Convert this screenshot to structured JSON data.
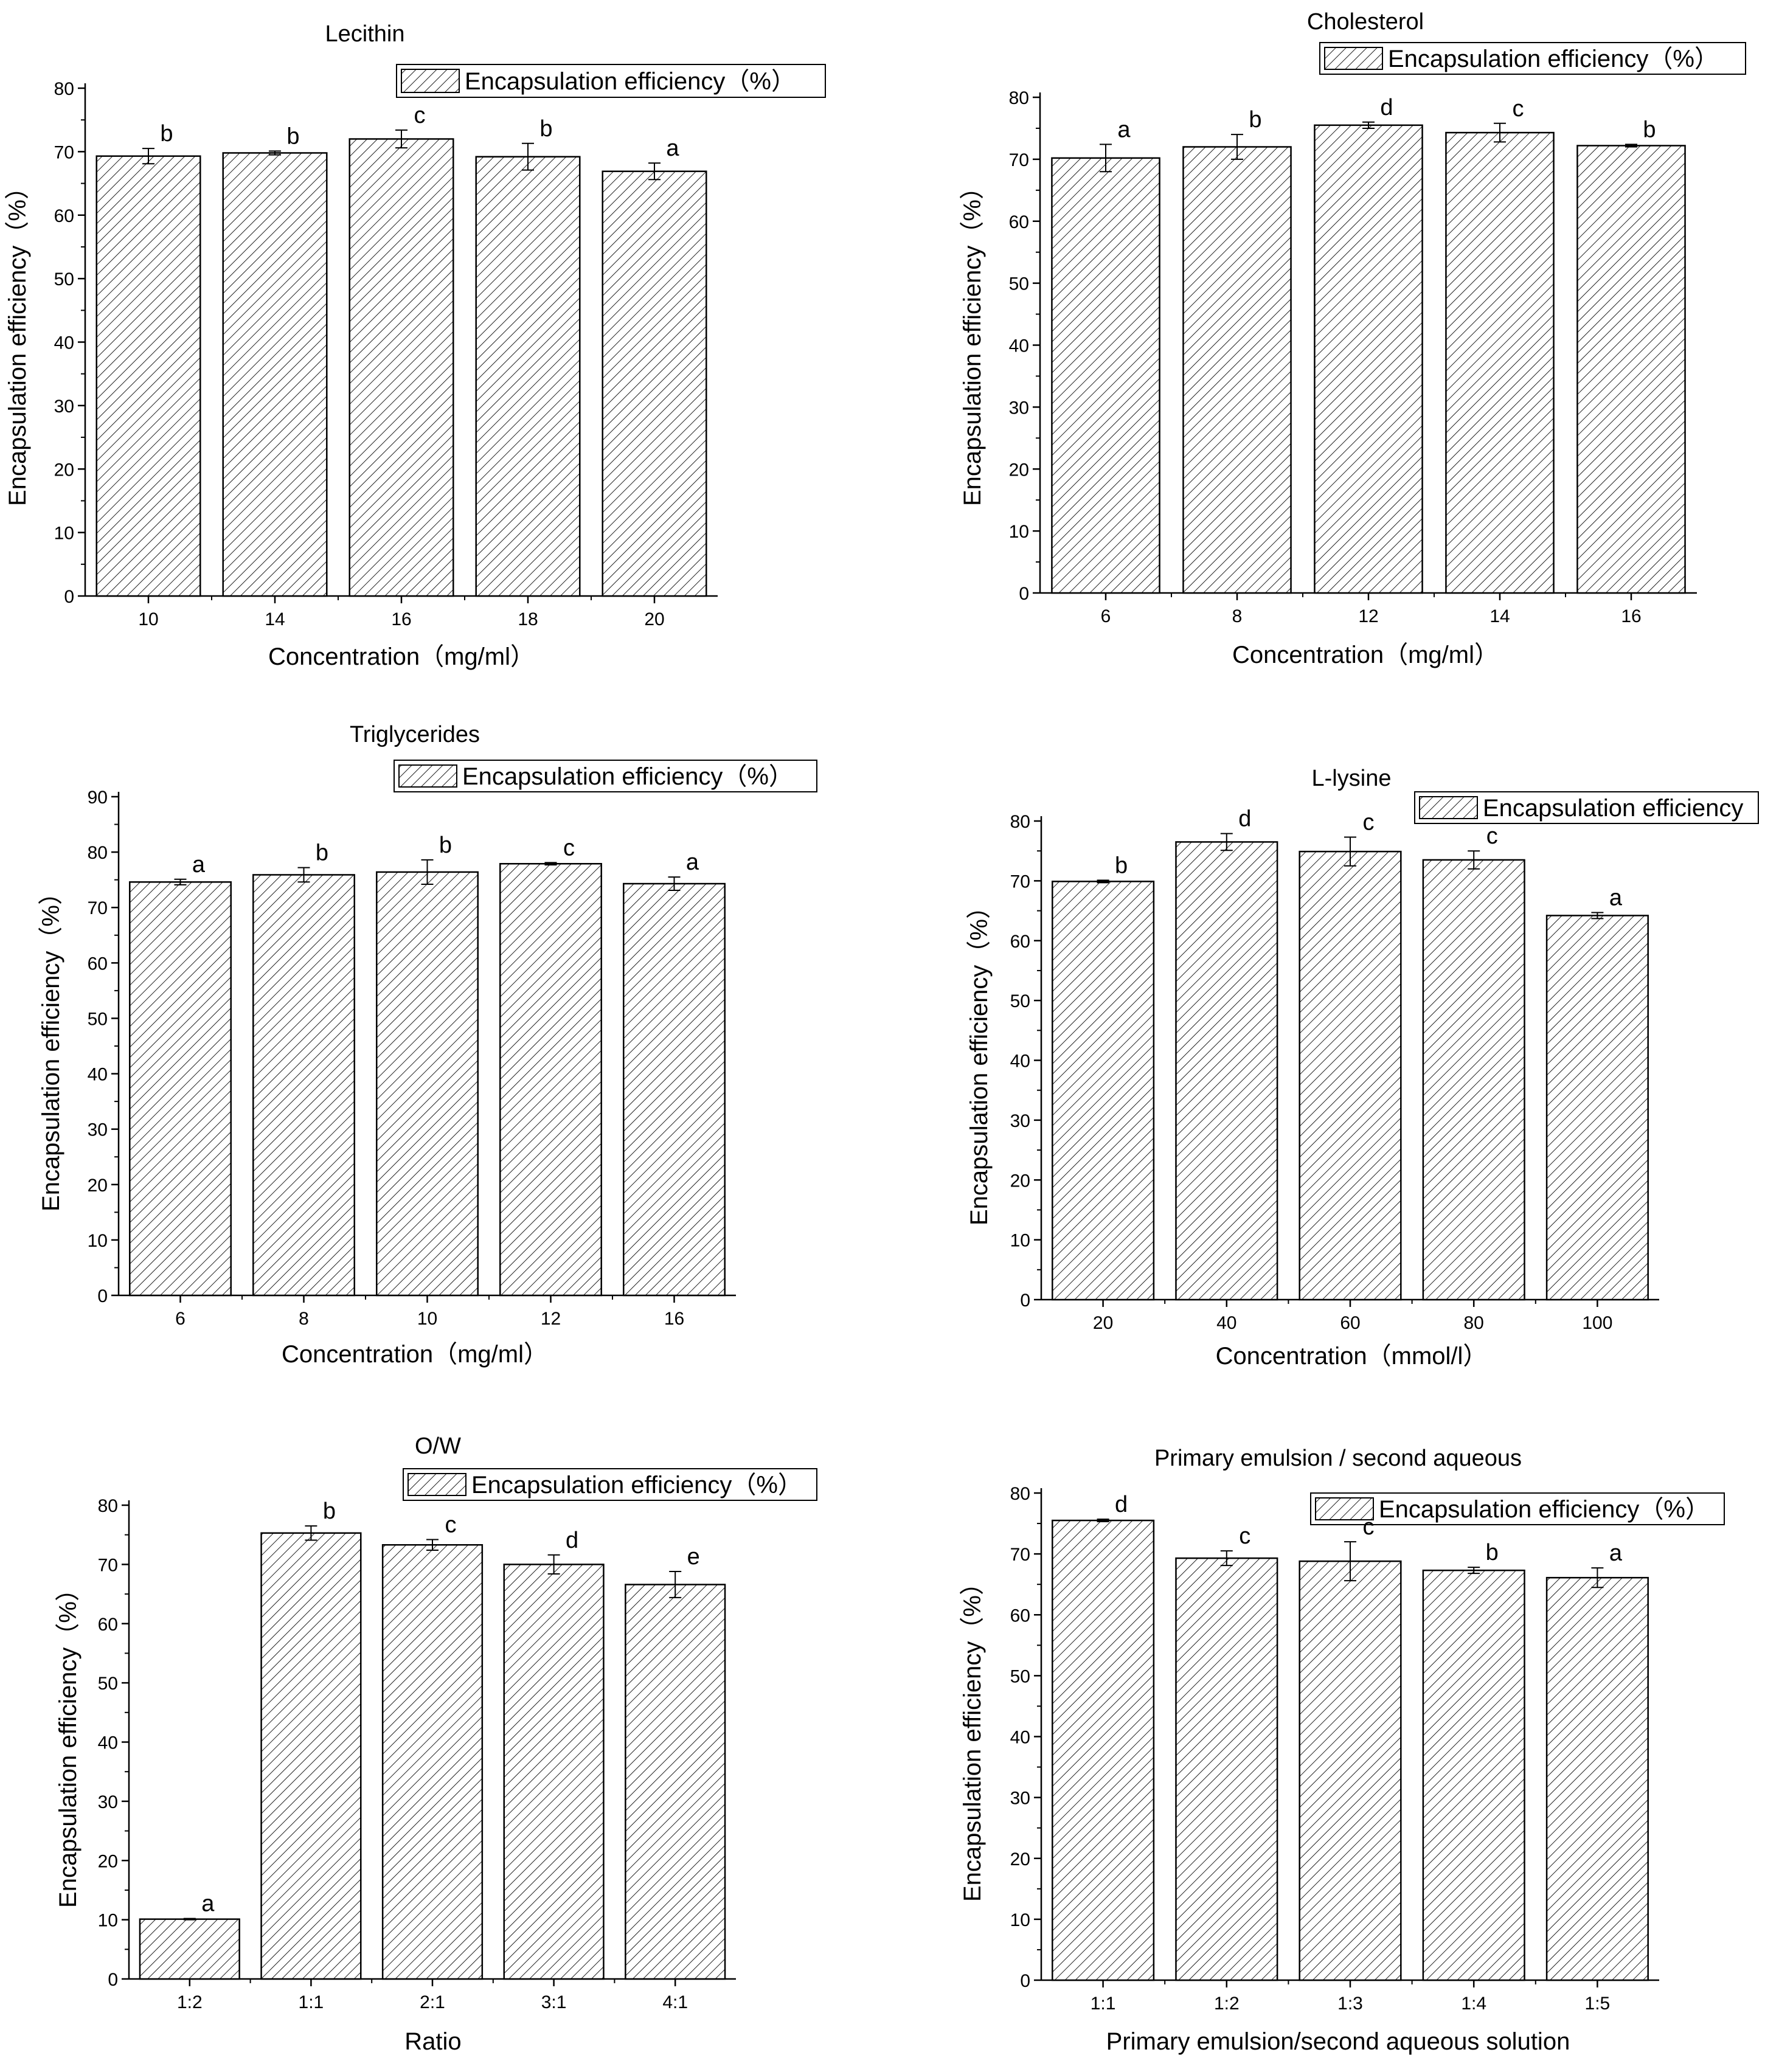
{
  "chart_data": [
    {
      "type": "bar",
      "title": "Lecithin",
      "xlabel": "Concentration（mg/ml）",
      "ylabel": "Encapsulation efficiency（%）",
      "legend": "Encapsulation efficiency（%）",
      "categories": [
        "10",
        "14",
        "16",
        "18",
        "20"
      ],
      "values": [
        69.3,
        69.8,
        72.0,
        69.2,
        66.9
      ],
      "errors": [
        1.2,
        0.3,
        1.4,
        2.1,
        1.3
      ],
      "letters": [
        "b",
        "b",
        "c",
        "b",
        "a"
      ],
      "ylim": [
        0,
        80
      ],
      "yticks": [
        0,
        10,
        20,
        30,
        40,
        50,
        60,
        70,
        80
      ]
    },
    {
      "type": "bar",
      "title": "Cholesterol",
      "xlabel": "Concentration（mg/ml）",
      "ylabel": "Encapsulation efficiency（%）",
      "legend": "Encapsulation efficiency（%）",
      "categories": [
        "6",
        "8",
        "12",
        "14",
        "16"
      ],
      "values": [
        70.2,
        72.0,
        75.5,
        74.3,
        72.2
      ],
      "errors": [
        2.2,
        2.0,
        0.5,
        1.5,
        0.2
      ],
      "letters": [
        "a",
        "b",
        "d",
        "c",
        "b"
      ],
      "ylim": [
        0,
        80
      ],
      "yticks": [
        0,
        10,
        20,
        30,
        40,
        50,
        60,
        70,
        80
      ]
    },
    {
      "type": "bar",
      "title": "Triglycerides",
      "xlabel": "Concentration（mg/ml）",
      "ylabel": "Encapsulation efficiency（%）",
      "legend": "Encapsulation efficiency（%）",
      "categories": [
        "6",
        "8",
        "10",
        "12",
        "16"
      ],
      "values": [
        74.6,
        75.9,
        76.4,
        77.9,
        74.3
      ],
      "errors": [
        0.5,
        1.3,
        2.2,
        0.2,
        1.2
      ],
      "letters": [
        "a",
        "b",
        "b",
        "c",
        "a"
      ],
      "ylim": [
        0,
        90
      ],
      "yticks": [
        0,
        10,
        20,
        30,
        40,
        50,
        60,
        70,
        80,
        90
      ]
    },
    {
      "type": "bar",
      "title": "L-lysine",
      "xlabel": "Concentration（mmol/l）",
      "ylabel": "Encapsulation efficiency（%）",
      "legend": "Encapsulation efficiency",
      "categories": [
        "20",
        "40",
        "60",
        "80",
        "100"
      ],
      "values": [
        69.9,
        76.5,
        74.9,
        73.5,
        64.2
      ],
      "errors": [
        0.2,
        1.4,
        2.4,
        1.5,
        0.5
      ],
      "letters": [
        "b",
        "d",
        "c",
        "c",
        "a"
      ],
      "ylim": [
        0,
        80
      ],
      "yticks": [
        0,
        10,
        20,
        30,
        40,
        50,
        60,
        70,
        80
      ]
    },
    {
      "type": "bar",
      "title": "O/W",
      "xlabel": "Ratio",
      "ylabel": "Encapsulation efficiency（%）",
      "legend": "Encapsulation efficiency（%）",
      "categories": [
        "1:2",
        "1:1",
        "2:1",
        "3:1",
        "4:1"
      ],
      "values": [
        10.1,
        75.3,
        73.3,
        70.0,
        66.6
      ],
      "errors": [
        0.1,
        1.2,
        0.9,
        1.6,
        2.2
      ],
      "letters": [
        "a",
        "b",
        "c",
        "d",
        "e"
      ],
      "ylim": [
        0,
        80
      ],
      "yticks": [
        0,
        10,
        20,
        30,
        40,
        50,
        60,
        70,
        80
      ]
    },
    {
      "type": "bar",
      "title": "Primary emulsion / second aqueous",
      "xlabel": "Primary emulsion/second aqueous solution",
      "ylabel": "Encapsulation efficiency（%）",
      "legend": "Encapsulation efficiency（%）",
      "categories": [
        "1:1",
        "1:2",
        "1:3",
        "1:4",
        "1:5"
      ],
      "values": [
        75.5,
        69.3,
        68.8,
        67.3,
        66.1
      ],
      "errors": [
        0.2,
        1.2,
        3.2,
        0.5,
        1.6
      ],
      "letters": [
        "d",
        "c",
        "c",
        "b",
        "a"
      ],
      "ylim": [
        0,
        80
      ],
      "yticks": [
        0,
        10,
        20,
        30,
        40,
        50,
        60,
        70,
        80
      ]
    }
  ]
}
